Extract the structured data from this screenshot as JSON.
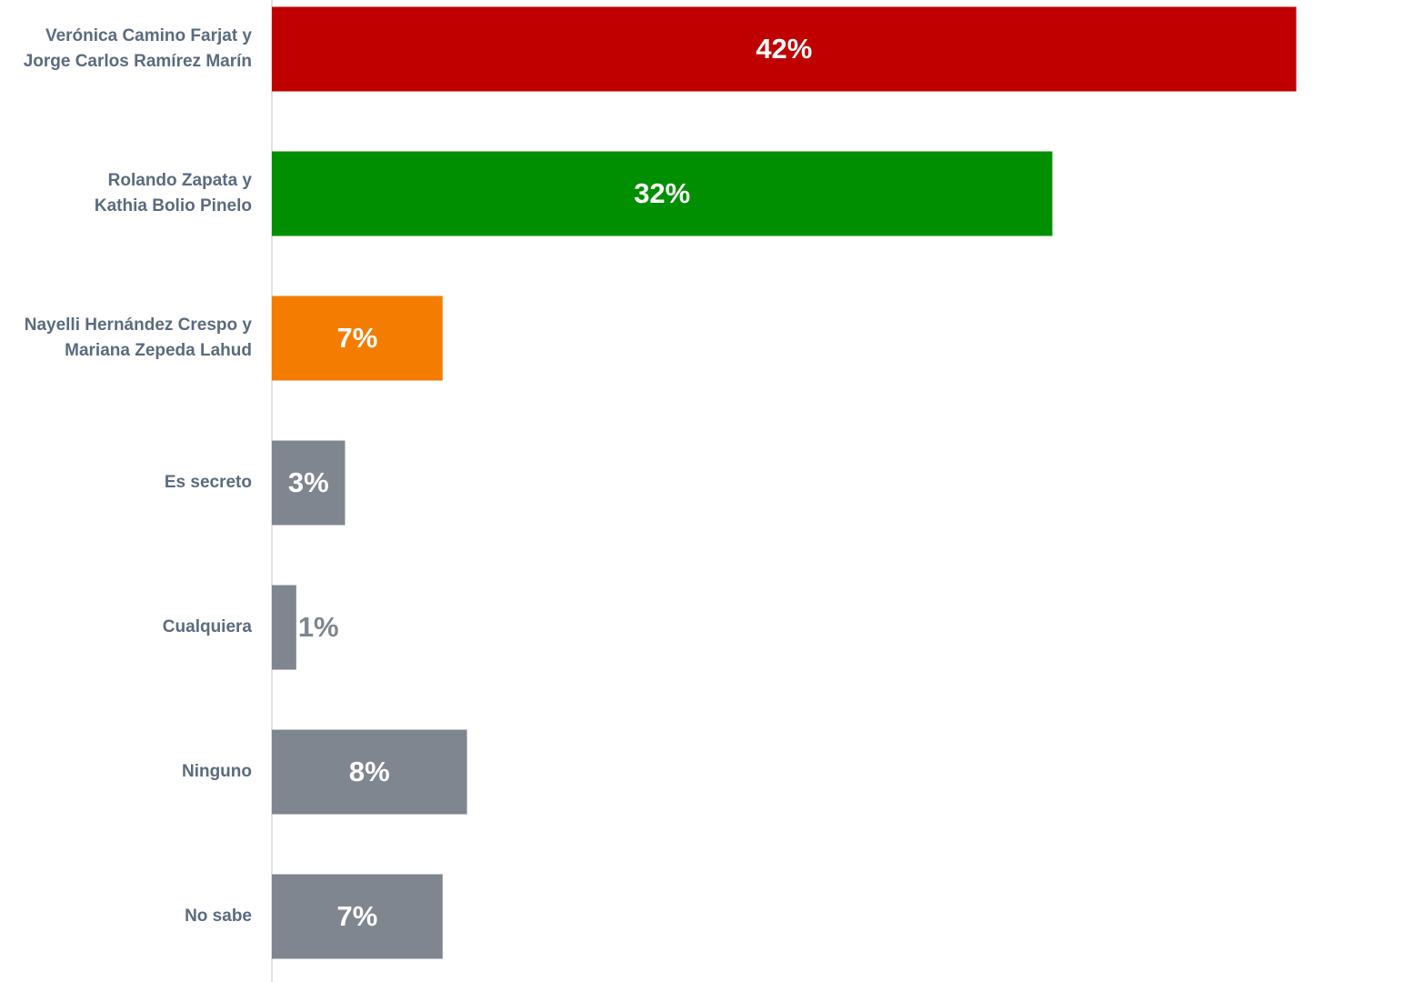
{
  "chart_data": {
    "type": "bar",
    "orientation": "horizontal",
    "categories": [
      [
        "Verónica Camino Farjat y",
        "Jorge Carlos Ramírez Marín"
      ],
      [
        "Rolando Zapata y",
        "Kathia Bolio Pinelo"
      ],
      [
        "Nayelli Hernández Crespo y",
        "Mariana Zepeda Lahud"
      ],
      [
        "Es secreto"
      ],
      [
        "Cualquiera"
      ],
      [
        "Ninguno"
      ],
      [
        "No sabe"
      ]
    ],
    "values": [
      42,
      32,
      7,
      3,
      1,
      8,
      7
    ],
    "value_labels": [
      "42%",
      "32%",
      "7%",
      "3%",
      "1%",
      "8%",
      "7%"
    ],
    "colors": [
      "#c00000",
      "#008f00",
      "#f47c00",
      "#7f868f",
      "#7f868f",
      "#7f868f",
      "#7f868f"
    ],
    "xlim": [
      0,
      46
    ]
  }
}
